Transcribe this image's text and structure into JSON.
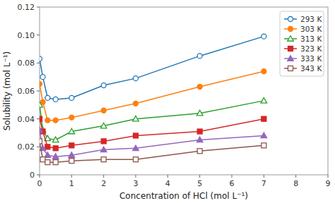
{
  "chart_data": {
    "type": "line",
    "title": "",
    "xlabel": "Concentration of HCl (mol L⁻¹)",
    "ylabel": "Solubility (mol L⁻¹)",
    "x": [
      0.0,
      0.1,
      0.25,
      0.5,
      1.0,
      2.0,
      3.0,
      5.0,
      7.0
    ],
    "xlim": [
      0,
      9
    ],
    "ylim": [
      0,
      0.12
    ],
    "xticks": [
      0,
      1,
      2,
      3,
      4,
      5,
      6,
      7,
      8,
      9
    ],
    "yticks": [
      0,
      0.02,
      0.04,
      0.06,
      0.08,
      {
        "value": 0.1,
        "label": "0.10"
      },
      0.12
    ],
    "grid": false,
    "legend": "upper-right",
    "series": [
      {
        "name": "293 K",
        "marker": "circle-open",
        "values": [
          0.083,
          0.07,
          0.055,
          0.054,
          0.055,
          0.064,
          0.069,
          0.085,
          0.099
        ]
      },
      {
        "name": "303 K",
        "marker": "circle-filled",
        "values": [
          0.065,
          0.052,
          0.039,
          0.039,
          0.041,
          0.046,
          0.051,
          0.063,
          0.074
        ]
      },
      {
        "name": "313 K",
        "marker": "triangle-open",
        "values": [
          0.05,
          0.032,
          0.026,
          0.025,
          0.031,
          0.035,
          0.04,
          0.044,
          0.053
        ]
      },
      {
        "name": "323 K",
        "marker": "square-filled",
        "values": [
          0.04,
          0.031,
          0.02,
          0.019,
          0.021,
          0.024,
          0.028,
          0.031,
          0.04
        ]
      },
      {
        "name": "333 K",
        "marker": "triangle-filled",
        "values": [
          0.032,
          0.019,
          0.014,
          0.013,
          0.014,
          0.018,
          0.019,
          0.025,
          0.028
        ]
      },
      {
        "name": "343 K",
        "marker": "square-open",
        "values": [
          0.024,
          0.011,
          0.009,
          0.009,
          0.01,
          0.011,
          0.011,
          0.017,
          0.021
        ]
      }
    ]
  }
}
